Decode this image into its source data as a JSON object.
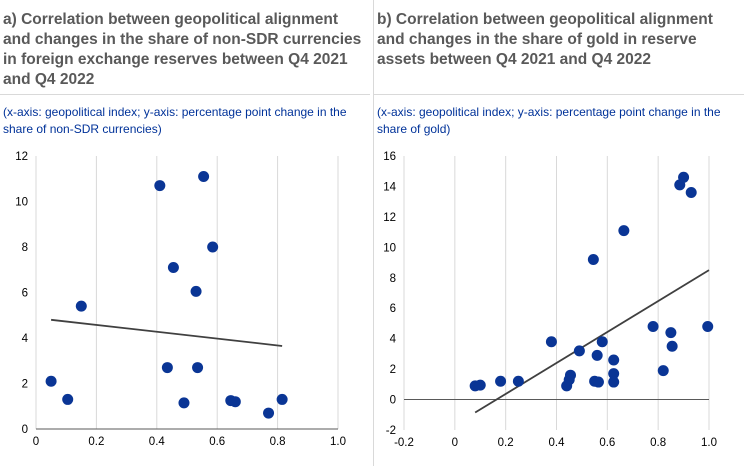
{
  "chart_data": [
    {
      "type": "scatter",
      "title": "a) Correlation between geopolitical alignment and changes in the share of non-SDR currencies in foreign exchange reserves between Q4 2021 and Q4 2022",
      "subtitle": "(x-axis: geopolitical index; y-axis: percentage point change in the share of non-SDR currencies)",
      "xlim": [
        0,
        1.0
      ],
      "ylim": [
        0,
        12
      ],
      "xticks": [
        "0",
        "0.2",
        "0.4",
        "0.6",
        "0.8",
        "1.0"
      ],
      "yticks": [
        "0",
        "2",
        "4",
        "6",
        "8",
        "10",
        "12"
      ],
      "grid": "vertical",
      "marker_color": "#0a3595",
      "trend_color": "#404040",
      "points": [
        {
          "x": 0.05,
          "y": 2.1
        },
        {
          "x": 0.105,
          "y": 1.3
        },
        {
          "x": 0.15,
          "y": 5.4
        },
        {
          "x": 0.41,
          "y": 10.7
        },
        {
          "x": 0.435,
          "y": 2.7
        },
        {
          "x": 0.455,
          "y": 7.1
        },
        {
          "x": 0.49,
          "y": 1.15
        },
        {
          "x": 0.53,
          "y": 6.05
        },
        {
          "x": 0.535,
          "y": 2.7
        },
        {
          "x": 0.555,
          "y": 11.1
        },
        {
          "x": 0.585,
          "y": 8.0
        },
        {
          "x": 0.645,
          "y": 1.25
        },
        {
          "x": 0.66,
          "y": 1.2
        },
        {
          "x": 0.77,
          "y": 0.7
        },
        {
          "x": 0.815,
          "y": 1.3
        }
      ],
      "trendline": [
        {
          "x": 0.05,
          "y": 4.8
        },
        {
          "x": 0.815,
          "y": 3.65
        }
      ]
    },
    {
      "type": "scatter",
      "title": "b) Correlation between geopolitical alignment and changes in the share of gold in reserve assets between Q4 2021 and Q4 2022",
      "subtitle": "(x-axis: geopolitical index; y-axis: percentage point change in the share of gold)",
      "xlim": [
        -0.2,
        1.0
      ],
      "ylim": [
        -2,
        16
      ],
      "xticks": [
        "-0.2",
        "0",
        "0.2",
        "0.4",
        "0.6",
        "0.8",
        "1.0"
      ],
      "yticks": [
        "-2",
        "0",
        "2",
        "4",
        "6",
        "8",
        "10",
        "12",
        "14",
        "16"
      ],
      "grid": "vertical",
      "marker_color": "#0a3595",
      "trend_color": "#404040",
      "points": [
        {
          "x": 0.08,
          "y": 0.9
        },
        {
          "x": 0.1,
          "y": 0.95
        },
        {
          "x": 0.18,
          "y": 1.2
        },
        {
          "x": 0.25,
          "y": 1.2
        },
        {
          "x": 0.38,
          "y": 3.8
        },
        {
          "x": 0.44,
          "y": 0.9
        },
        {
          "x": 0.45,
          "y": 1.3
        },
        {
          "x": 0.455,
          "y": 1.6
        },
        {
          "x": 0.49,
          "y": 3.2
        },
        {
          "x": 0.545,
          "y": 9.2
        },
        {
          "x": 0.55,
          "y": 1.2
        },
        {
          "x": 0.56,
          "y": 2.9
        },
        {
          "x": 0.565,
          "y": 1.15
        },
        {
          "x": 0.58,
          "y": 3.8
        },
        {
          "x": 0.625,
          "y": 2.6
        },
        {
          "x": 0.625,
          "y": 1.7
        },
        {
          "x": 0.625,
          "y": 1.15
        },
        {
          "x": 0.665,
          "y": 11.1
        },
        {
          "x": 0.78,
          "y": 4.8
        },
        {
          "x": 0.82,
          "y": 1.9
        },
        {
          "x": 0.85,
          "y": 4.4
        },
        {
          "x": 0.855,
          "y": 3.5
        },
        {
          "x": 0.885,
          "y": 14.1
        },
        {
          "x": 0.9,
          "y": 14.6
        },
        {
          "x": 0.93,
          "y": 13.6
        },
        {
          "x": 0.995,
          "y": 4.8
        }
      ],
      "trendline": [
        {
          "x": 0.08,
          "y": -0.85
        },
        {
          "x": 1.0,
          "y": 8.5
        }
      ]
    }
  ]
}
